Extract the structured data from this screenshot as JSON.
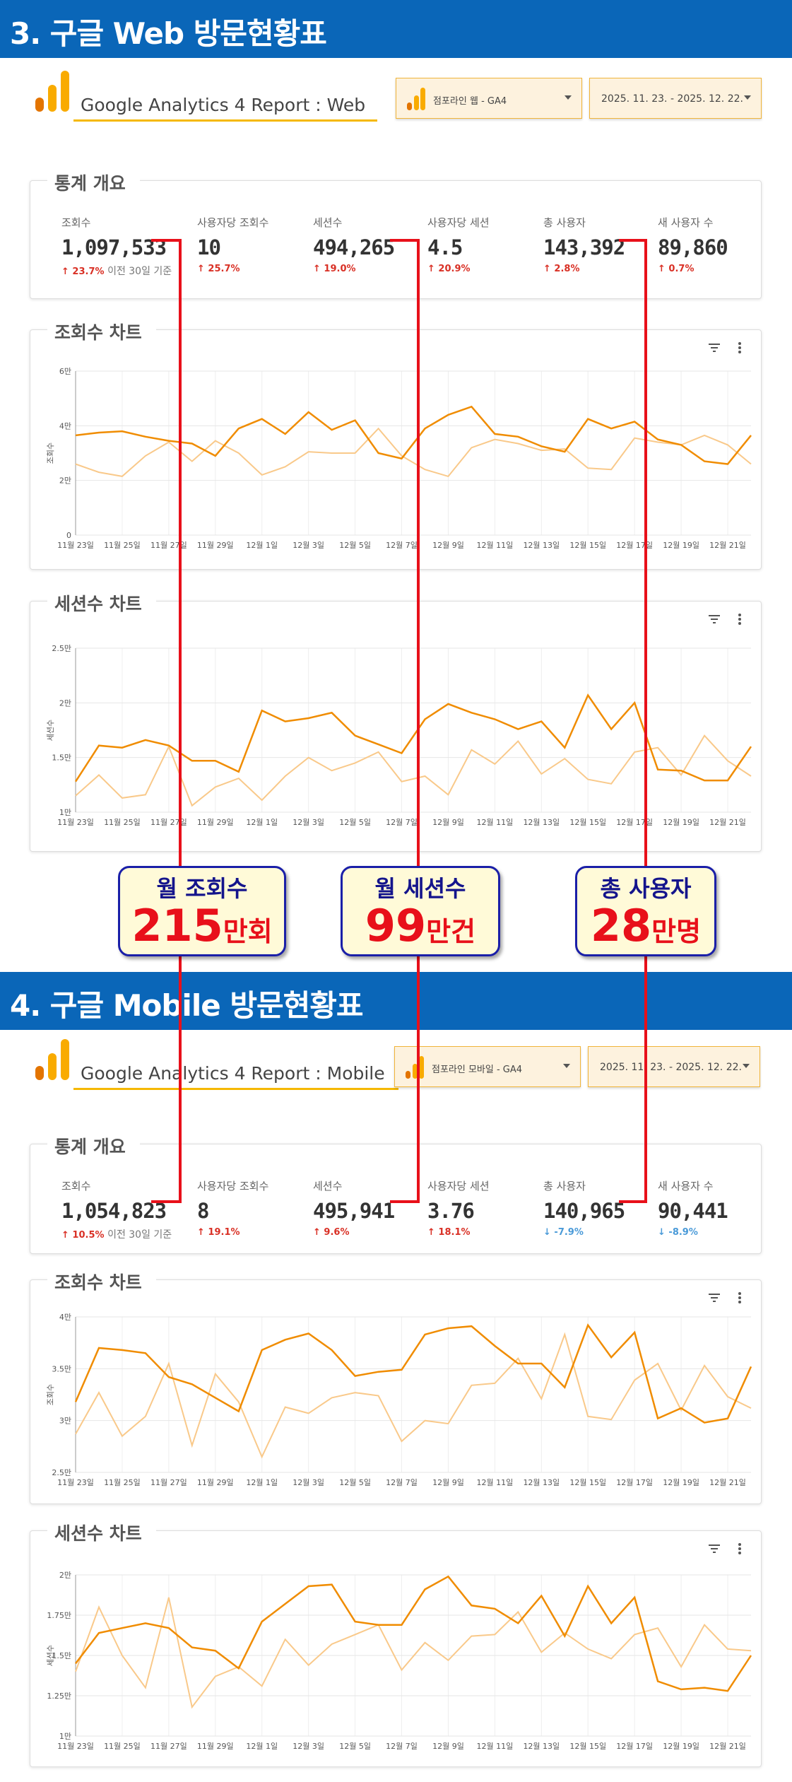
{
  "sections": [
    {
      "heading": "3. 구글 Web 방문현황표",
      "report_title": "Google Analytics 4 Report : Web",
      "property_select": "점포라인 웹 - GA4",
      "date_range": "2025. 11. 23. - 2025. 12. 22.",
      "overview_title": "통계 개요",
      "metrics": [
        {
          "label": "조회수",
          "value": "1,097,533",
          "delta": "23.7%",
          "dir": "up",
          "note": "이전 30일 기준"
        },
        {
          "label": "사용자당 조회수",
          "value": "10",
          "delta": "25.7%",
          "dir": "up"
        },
        {
          "label": "세션수",
          "value": "494,265",
          "delta": "19.0%",
          "dir": "up"
        },
        {
          "label": "사용자당 세션",
          "value": "4.5",
          "delta": "20.9%",
          "dir": "up"
        },
        {
          "label": "총 사용자",
          "value": "143,392",
          "delta": "2.8%",
          "dir": "up"
        },
        {
          "label": "새 사용자 수",
          "value": "89,860",
          "delta": "0.7%",
          "dir": "up"
        }
      ],
      "views_chart": {
        "title": "조회수 차트",
        "ylabel": "조회수",
        "yticks": [
          "0",
          "2만",
          "4만",
          "6만"
        ],
        "ylim": [
          0,
          60000
        ],
        "xticks": [
          "11월 23일",
          "11월 25일",
          "11월 27일",
          "11월 29일",
          "12월 1일",
          "12월 3일",
          "12월 5일",
          "12월 7일",
          "12월 9일",
          "12월 11일",
          "12월 13일",
          "12월 15일",
          "12월 17일",
          "12월 19일",
          "12월 21일"
        ],
        "current": [
          36500,
          37500,
          38000,
          36000,
          34500,
          33500,
          29000,
          39000,
          42500,
          37000,
          45000,
          38500,
          42000,
          30000,
          28000,
          39000,
          44000,
          47000,
          37000,
          36000,
          32500,
          30500,
          42500,
          39000,
          41500,
          35000,
          33000,
          27000,
          26000,
          36500
        ],
        "previous": [
          26000,
          23000,
          21500,
          29000,
          34000,
          27000,
          34500,
          30000,
          22000,
          25000,
          30500,
          30000,
          30000,
          39000,
          29000,
          24000,
          21500,
          32000,
          35000,
          33500,
          31000,
          31500,
          24500,
          24000,
          35500,
          34000,
          33000,
          36500,
          33000,
          26000
        ]
      },
      "sessions_chart": {
        "title": "세션수 차트",
        "ylabel": "세션수",
        "yticks": [
          "1만",
          "1.5만",
          "2만",
          "2.5만"
        ],
        "ylim": [
          10000,
          25000
        ],
        "xticks": [
          "11월 23일",
          "11월 25일",
          "11월 27일",
          "11월 29일",
          "12월 1일",
          "12월 3일",
          "12월 5일",
          "12월 7일",
          "12월 9일",
          "12월 11일",
          "12월 13일",
          "12월 15일",
          "12월 17일",
          "12월 19일",
          "12월 21일"
        ],
        "current": [
          12800,
          16100,
          15900,
          16600,
          16100,
          14700,
          14700,
          13700,
          19300,
          18300,
          18600,
          19100,
          17000,
          16200,
          15400,
          18500,
          19900,
          19100,
          18500,
          17600,
          18300,
          15900,
          20700,
          17600,
          20000,
          13900,
          13800,
          12900,
          12900,
          16000
        ],
        "previous": [
          11500,
          13400,
          11300,
          11600,
          16000,
          10600,
          12300,
          13100,
          11100,
          13300,
          15000,
          13800,
          14500,
          15500,
          12800,
          13300,
          11600,
          15700,
          14400,
          16500,
          13500,
          14900,
          13000,
          12600,
          15500,
          15900,
          13400,
          17000,
          14700,
          13300
        ]
      }
    },
    {
      "heading": "4. 구글 Mobile 방문현황표",
      "report_title": "Google Analytics 4 Report : Mobile",
      "property_select": "점포라인 모바일 - GA4",
      "date_range": "2025. 11. 23. - 2025. 12. 22.",
      "overview_title": "통계 개요",
      "metrics": [
        {
          "label": "조회수",
          "value": "1,054,823",
          "delta": "10.5%",
          "dir": "up",
          "note": "이전 30일 기준"
        },
        {
          "label": "사용자당 조회수",
          "value": "8",
          "delta": "19.1%",
          "dir": "up"
        },
        {
          "label": "세션수",
          "value": "495,941",
          "delta": "9.6%",
          "dir": "up"
        },
        {
          "label": "사용자당 세션",
          "value": "3.76",
          "delta": "18.1%",
          "dir": "up"
        },
        {
          "label": "총 사용자",
          "value": "140,965",
          "delta": "-7.9%",
          "dir": "down"
        },
        {
          "label": "새 사용자 수",
          "value": "90,441",
          "delta": "-8.9%",
          "dir": "down"
        }
      ],
      "views_chart": {
        "title": "조회수 차트",
        "ylabel": "조회수",
        "yticks": [
          "2.5만",
          "3만",
          "3.5만",
          "4만"
        ],
        "ylim": [
          25000,
          40000
        ],
        "xticks": [
          "11월 23일",
          "11월 25일",
          "11월 27일",
          "11월 29일",
          "12월 1일",
          "12월 3일",
          "12월 5일",
          "12월 7일",
          "12월 9일",
          "12월 11일",
          "12월 13일",
          "12월 15일",
          "12월 17일",
          "12월 19일",
          "12월 21일"
        ],
        "current": [
          31800,
          37000,
          36800,
          36500,
          34200,
          33500,
          32200,
          30900,
          36800,
          37800,
          38400,
          36800,
          34300,
          34700,
          34900,
          38300,
          38900,
          39100,
          37200,
          35500,
          35500,
          33200,
          39200,
          36100,
          38500,
          30200,
          31200,
          29800,
          30200,
          35200
        ],
        "previous": [
          28700,
          32700,
          28500,
          30400,
          35500,
          27600,
          34500,
          31800,
          26500,
          31300,
          30700,
          32200,
          32700,
          32400,
          28000,
          30000,
          29700,
          33400,
          33600,
          36000,
          32100,
          38300,
          30400,
          30100,
          33900,
          35500,
          31000,
          35300,
          32300,
          31200
        ]
      },
      "sessions_chart": {
        "title": "세션수 차트",
        "ylabel": "세션수",
        "yticks": [
          "1만",
          "1.25만",
          "1.5만",
          "1.75만",
          "2만"
        ],
        "ylim": [
          10000,
          20000
        ],
        "xticks": [
          "11월 23일",
          "11월 25일",
          "11월 27일",
          "11월 29일",
          "12월 1일",
          "12월 3일",
          "12월 5일",
          "12월 7일",
          "12월 9일",
          "12월 11일",
          "12월 13일",
          "12월 15일",
          "12월 17일",
          "12월 19일",
          "12월 21일"
        ],
        "current": [
          14500,
          16400,
          16700,
          17000,
          16700,
          15500,
          15300,
          14200,
          17100,
          18200,
          19300,
          19400,
          17100,
          16900,
          16900,
          19100,
          19900,
          18100,
          17900,
          17000,
          18700,
          16200,
          19300,
          17000,
          18600,
          13400,
          12900,
          13000,
          12800,
          15000
        ],
        "previous": [
          14000,
          18000,
          15000,
          13000,
          18600,
          11800,
          13700,
          14300,
          13100,
          16000,
          14400,
          15700,
          16300,
          16900,
          14100,
          15800,
          14700,
          16200,
          16300,
          17700,
          15200,
          16400,
          15400,
          14800,
          16300,
          16700,
          14300,
          16900,
          15400,
          15300
        ]
      }
    }
  ],
  "callouts": [
    {
      "title": "월 조회수",
      "number": "215",
      "unit": "만회"
    },
    {
      "title": "월 세션수",
      "number": "99",
      "unit": "만건"
    },
    {
      "title": "총 사용자",
      "number": "28",
      "unit": "만명"
    }
  ],
  "colors": {
    "header_bg": "#0a66b8",
    "current_line": "#f08c00",
    "previous_line": "#f9c98a",
    "callout_border": "#1a1fa8",
    "callout_number": "#e8101a",
    "connector": "#e8101a"
  },
  "chart_data": [
    {
      "type": "line",
      "title": "조회수 차트",
      "ylabel": "조회수",
      "ylim": [
        0,
        60000
      ]
    },
    {
      "type": "line",
      "title": "세션수 차트",
      "ylabel": "세션수",
      "ylim": [
        10000,
        25000
      ]
    },
    {
      "type": "line",
      "title": "조회수 차트",
      "ylabel": "조회수",
      "ylim": [
        25000,
        40000
      ]
    },
    {
      "type": "line",
      "title": "세션수 차트",
      "ylabel": "세션수",
      "ylim": [
        10000,
        20000
      ]
    }
  ]
}
